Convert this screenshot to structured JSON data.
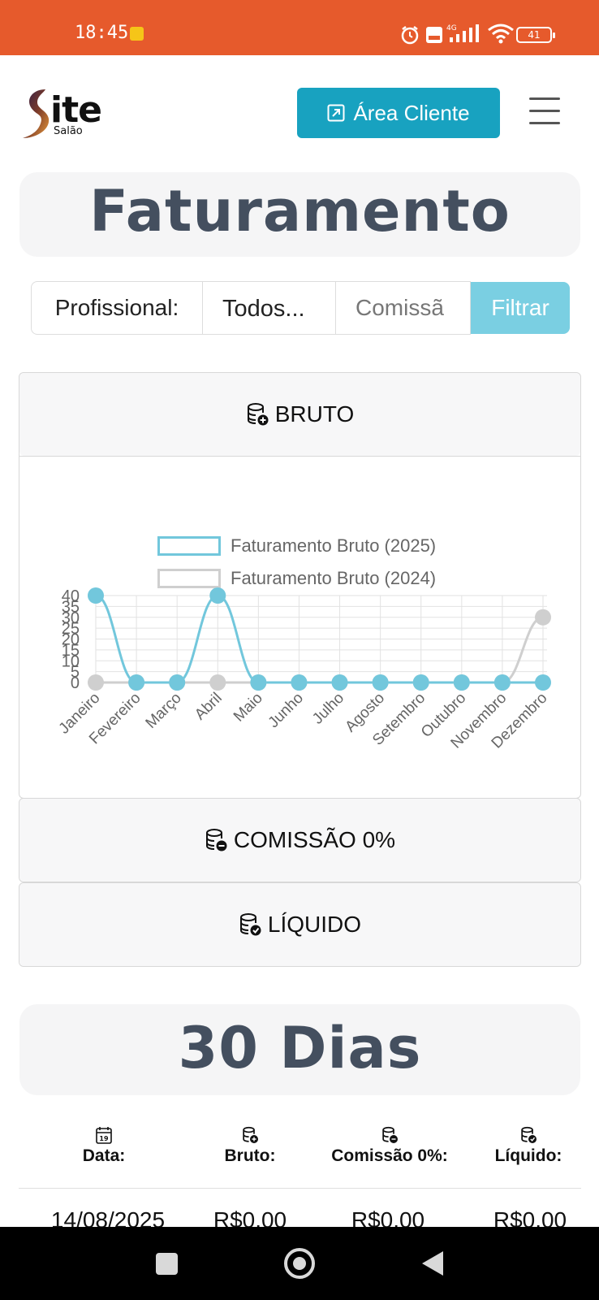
{
  "status_bar": {
    "time": "18:45",
    "battery": "41",
    "icons": [
      "call-icon",
      "alarm-icon",
      "volte-icon",
      "signal-4g-icon",
      "wifi-icon",
      "battery-icon"
    ]
  },
  "header": {
    "logo_text": "ite",
    "logo_subtext": "Salão",
    "area_button": "Área Cliente"
  },
  "page_title": "Faturamento",
  "filter": {
    "label": "Profissional:",
    "select_value": "Todos...",
    "commission_placeholder": "Comissã",
    "submit": "Filtrar"
  },
  "panels": {
    "bruto": "BRUTO",
    "comissao": "COMISSÃO 0%",
    "liquido": "LÍQUIDO"
  },
  "chart_data": {
    "type": "line",
    "x": [
      "Janeiro",
      "Fevereiro",
      "Março",
      "Abril",
      "Maio",
      "Junho",
      "Julho",
      "Agosto",
      "Setembro",
      "Outubro",
      "Novembro",
      "Dezembro"
    ],
    "y_ticks": [
      0,
      5,
      10,
      15,
      20,
      25,
      30,
      35,
      40
    ],
    "ylim": [
      0,
      40
    ],
    "grid": true,
    "legend_position": "top",
    "series": [
      {
        "name": "Faturamento Bruto (2025)",
        "color": "#72C7DC",
        "values": [
          40,
          0,
          0,
          40,
          0,
          0,
          0,
          0,
          0,
          0,
          0,
          0
        ]
      },
      {
        "name": "Faturamento Bruto (2024)",
        "color": "#CFCFCF",
        "values": [
          0,
          0,
          0,
          0,
          0,
          0,
          0,
          0,
          0,
          0,
          0,
          30
        ]
      }
    ]
  },
  "section_30": {
    "title": "30 Dias",
    "calendar_day": "19",
    "headers": [
      "Data:",
      "Bruto:",
      "Comissão 0%:",
      "Líquido:"
    ],
    "rows": [
      [
        "14/08/2025",
        "R$0,00",
        "R$0,00",
        "R$0,00"
      ]
    ]
  }
}
